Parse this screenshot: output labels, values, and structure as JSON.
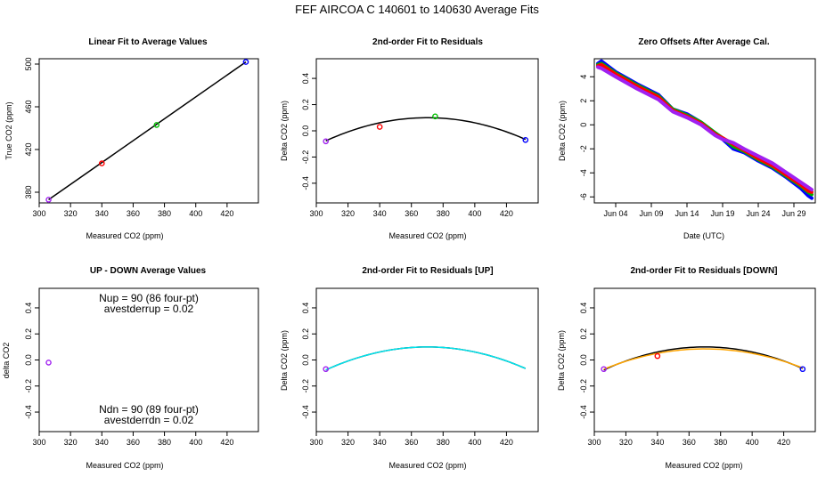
{
  "page": {
    "title": "FEF   AIRCOA C   140601 to 140630   Average Fits"
  },
  "panels": [
    {
      "title": "Linear Fit to Average Values",
      "xlabel": "Measured CO2 (ppm)",
      "ylabel": "True CO2 (ppm)"
    },
    {
      "title": "2nd-order Fit to Residuals",
      "xlabel": "Measured CO2 (ppm)",
      "ylabel": "Delta CO2 (ppm)"
    },
    {
      "title": "Zero Offsets After Average Cal.",
      "xlabel": "Date (UTC)",
      "ylabel": "Delta CO2 (ppm)"
    },
    {
      "title": "UP - DOWN Average Values",
      "xlabel": "Measured CO2 (ppm)",
      "ylabel": "delta CO2",
      "annotations": [
        "Nup = 90 (86 four-pt)",
        "avestderrup =  0.02",
        "Ndn = 90 (89 four-pt)",
        "avestderrdn =  0.02"
      ]
    },
    {
      "title": "2nd-order Fit to Residuals [UP]",
      "xlabel": "Measured CO2 (ppm)",
      "ylabel": "Delta CO2 (ppm)"
    },
    {
      "title": "2nd-order Fit to Residuals [DOWN]",
      "xlabel": "Measured CO2 (ppm)",
      "ylabel": "Delta CO2 (ppm)"
    }
  ],
  "chart_data": [
    {
      "type": "scatter",
      "title": "Linear Fit to Average Values",
      "xlabel": "Measured CO2 (ppm)",
      "ylabel": "True CO2 (ppm)",
      "xlim": [
        300,
        440
      ],
      "ylim": [
        370,
        505
      ],
      "xticks": [
        300,
        320,
        340,
        360,
        380,
        400,
        420
      ],
      "yticks": [
        380,
        420,
        460,
        500
      ],
      "yticklabels": [
        "380",
        "420",
        "460",
        "500"
      ],
      "points": [
        {
          "x": 306,
          "y": 373,
          "color": "#a020f0"
        },
        {
          "x": 340,
          "y": 407,
          "color": "#ff0000"
        },
        {
          "x": 375,
          "y": 443,
          "color": "#00c000"
        },
        {
          "x": 432,
          "y": 502,
          "color": "#0000ff"
        }
      ],
      "fit_line": {
        "x": [
          306,
          432
        ],
        "y": [
          373,
          502
        ],
        "color": "#000000"
      }
    },
    {
      "type": "scatter",
      "title": "2nd-order Fit to Residuals",
      "xlabel": "Measured CO2 (ppm)",
      "ylabel": "Delta CO2 (ppm)",
      "xlim": [
        300,
        440
      ],
      "ylim": [
        -0.55,
        0.55
      ],
      "xticks": [
        300,
        320,
        340,
        360,
        380,
        400,
        420
      ],
      "yticks": [
        -0.4,
        -0.2,
        0.0,
        0.2,
        0.4
      ],
      "yticklabels": [
        "-0.4",
        "-0.2",
        "0.0",
        "0.2",
        "0.4"
      ],
      "points": [
        {
          "x": 306,
          "y": -0.08,
          "color": "#a020f0"
        },
        {
          "x": 340,
          "y": 0.03,
          "color": "#ff0000"
        },
        {
          "x": 375,
          "y": 0.11,
          "color": "#00c000"
        },
        {
          "x": 432,
          "y": -0.07,
          "color": "#0000ff"
        }
      ],
      "fit_curve": {
        "x0": 370,
        "y0": 0.1,
        "a": -4.31e-05,
        "xrange": [
          306,
          432
        ],
        "color": "#000000"
      }
    },
    {
      "type": "line",
      "title": "Zero Offsets After Average Cal.",
      "xlabel": "Date (UTC)",
      "ylabel": "Delta CO2 (ppm)",
      "xlim": [
        0,
        31
      ],
      "ylim": [
        -6.5,
        5.5
      ],
      "xticks": [
        3,
        8,
        13,
        18,
        23,
        28
      ],
      "xticklabels": [
        "Jun 04",
        "Jun 09",
        "Jun 14",
        "Jun 19",
        "Jun 24",
        "Jun 29"
      ],
      "yticks": [
        -6,
        -4,
        -2,
        0,
        2,
        4
      ],
      "yticklabels": [
        "-6",
        "-4",
        "-2",
        "0",
        "2",
        "4"
      ],
      "series": [
        {
          "color": "#0000ff",
          "x": [
            0.5,
            1,
            3,
            6,
            9,
            11,
            13,
            15,
            17,
            18,
            19.5,
            21,
            23,
            25,
            27,
            29,
            30,
            30.5
          ],
          "y": [
            5.1,
            5.3,
            4.4,
            3.4,
            2.5,
            1.3,
            0.9,
            0.2,
            -0.7,
            -1.2,
            -2.0,
            -2.3,
            -3.0,
            -3.6,
            -4.4,
            -5.3,
            -5.9,
            -6.1
          ]
        },
        {
          "color": "#00b000",
          "x": [
            0.5,
            1,
            3,
            6,
            9,
            11,
            13,
            15,
            17,
            18,
            19.5,
            21,
            23,
            25,
            27,
            29,
            30,
            30.5
          ],
          "y": [
            5.0,
            5.1,
            4.3,
            3.3,
            2.4,
            1.3,
            0.8,
            0.2,
            -0.7,
            -1.1,
            -1.8,
            -2.2,
            -2.9,
            -3.5,
            -4.3,
            -5.1,
            -5.6,
            -5.8
          ]
        },
        {
          "color": "#ff0000",
          "x": [
            0.5,
            1,
            3,
            6,
            9,
            11,
            13,
            15,
            17,
            18,
            19.5,
            21,
            23,
            25,
            27,
            29,
            30,
            30.5
          ],
          "y": [
            4.9,
            5.0,
            4.2,
            3.2,
            2.3,
            1.2,
            0.7,
            0.1,
            -0.8,
            -1.1,
            -1.6,
            -2.1,
            -2.8,
            -3.4,
            -4.2,
            -5.0,
            -5.5,
            -5.6
          ]
        },
        {
          "color": "#a020f0",
          "x": [
            0.5,
            1,
            3,
            6,
            9,
            11,
            13,
            15,
            17,
            18,
            19.5,
            21,
            23,
            25,
            27,
            29,
            30,
            30.5
          ],
          "y": [
            4.8,
            4.7,
            4.0,
            3.0,
            2.1,
            1.1,
            0.6,
            0.0,
            -0.9,
            -1.2,
            -1.5,
            -2.0,
            -2.6,
            -3.2,
            -4.0,
            -4.8,
            -5.2,
            -5.4
          ]
        }
      ]
    },
    {
      "type": "scatter",
      "title": "UP - DOWN Average Values",
      "xlabel": "Measured CO2 (ppm)",
      "ylabel": "delta CO2",
      "xlim": [
        300,
        440
      ],
      "ylim": [
        -0.55,
        0.55
      ],
      "xticks": [
        300,
        320,
        340,
        360,
        380,
        400,
        420
      ],
      "yticks": [
        -0.4,
        -0.2,
        0.0,
        0.2,
        0.4
      ],
      "yticklabels": [
        "-0.4",
        "-0.2",
        "0.0",
        "0.2",
        "0.4"
      ],
      "points": [
        {
          "x": 306,
          "y": -0.02,
          "color": "#a020f0"
        }
      ],
      "annotations": [
        "Nup = 90 (86 four-pt)",
        "avestderrup =  0.02",
        "Ndn = 90 (89 four-pt)",
        "avestderrdn =  0.02"
      ]
    },
    {
      "type": "scatter",
      "title": "2nd-order Fit to Residuals [UP]",
      "xlabel": "Measured CO2 (ppm)",
      "ylabel": "Delta CO2 (ppm)",
      "xlim": [
        300,
        440
      ],
      "ylim": [
        -0.55,
        0.55
      ],
      "xticks": [
        300,
        320,
        340,
        360,
        380,
        400,
        420
      ],
      "yticks": [
        -0.4,
        -0.2,
        0.0,
        0.2,
        0.4
      ],
      "yticklabels": [
        "-0.4",
        "-0.2",
        "0.0",
        "0.2",
        "0.4"
      ],
      "points": [
        {
          "x": 306,
          "y": -0.07,
          "color": "#a020f0"
        }
      ],
      "fit_curves": [
        {
          "x0": 370,
          "y0": 0.1,
          "a": -4.31e-05,
          "xrange": [
            306,
            432
          ],
          "color": "#000000"
        },
        {
          "x0": 370,
          "y0": 0.1,
          "a": -4.31e-05,
          "xrange": [
            306,
            432
          ],
          "color": "#00e5ee"
        }
      ]
    },
    {
      "type": "scatter",
      "title": "2nd-order Fit to Residuals [DOWN]",
      "xlabel": "Measured CO2 (ppm)",
      "ylabel": "Delta CO2 (ppm)",
      "xlim": [
        300,
        440
      ],
      "ylim": [
        -0.55,
        0.55
      ],
      "xticks": [
        300,
        320,
        340,
        360,
        380,
        400,
        420
      ],
      "yticks": [
        -0.4,
        -0.2,
        0.0,
        0.2,
        0.4
      ],
      "yticklabels": [
        "-0.4",
        "-0.2",
        "0.0",
        "0.2",
        "0.4"
      ],
      "points": [
        {
          "x": 306,
          "y": -0.07,
          "color": "#a020f0"
        },
        {
          "x": 340,
          "y": 0.03,
          "color": "#ff0000"
        },
        {
          "x": 432,
          "y": -0.07,
          "color": "#0000ff"
        }
      ],
      "fit_curves": [
        {
          "x0": 370,
          "y0": 0.1,
          "a": -4.31e-05,
          "xrange": [
            306,
            432
          ],
          "color": "#000000"
        },
        {
          "x0": 370,
          "y0": 0.085,
          "a": -3.8e-05,
          "xrange": [
            306,
            432
          ],
          "color": "#ffa500"
        }
      ]
    }
  ]
}
